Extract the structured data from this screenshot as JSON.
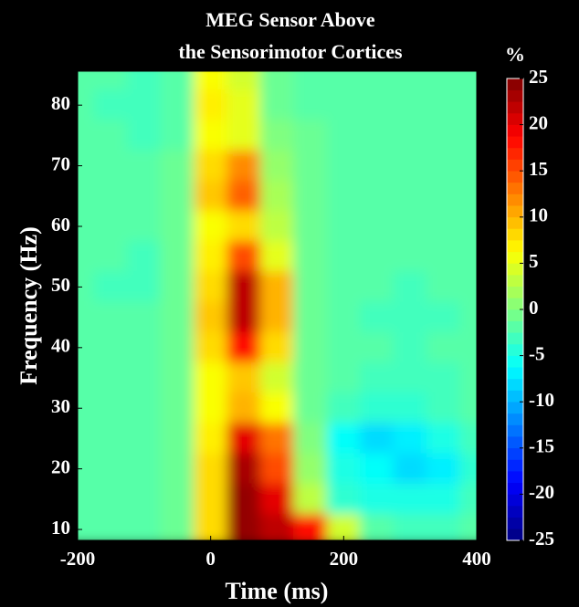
{
  "chart_data": {
    "type": "heatmap",
    "title": [
      "MEG Sensor Above",
      "the Sensorimotor Cortices"
    ],
    "x_label": "Time (ms)",
    "y_label": "Frequency (Hz)",
    "colorbar_label": "%",
    "x": [
      -200,
      -150,
      -100,
      -50,
      0,
      50,
      100,
      150,
      200,
      250,
      300,
      350,
      400
    ],
    "y": [
      85,
      80,
      75,
      70,
      65,
      60,
      55,
      50,
      45,
      40,
      35,
      30,
      25,
      20,
      15,
      10
    ],
    "z": [
      [
        -2,
        -2,
        -3,
        -2,
        6,
        4,
        -1,
        -2,
        -2,
        -2,
        -2,
        -2,
        -2
      ],
      [
        -2,
        -3,
        -3,
        -2,
        7,
        5,
        -1,
        -2,
        -2,
        -2,
        -2,
        -2,
        -2
      ],
      [
        -2,
        -2,
        -3,
        -2,
        6,
        5,
        0,
        -1,
        -2,
        -2,
        -2,
        -2,
        -2
      ],
      [
        -2,
        -2,
        -2,
        -1,
        8,
        12,
        1,
        -1,
        -2,
        -2,
        -2,
        -2,
        -2
      ],
      [
        -2,
        -2,
        -2,
        -1,
        9,
        14,
        2,
        -1,
        -2,
        -2,
        -2,
        -2,
        -2
      ],
      [
        -2,
        -2,
        -2,
        -1,
        6,
        8,
        3,
        -1,
        -2,
        -2,
        -2,
        -2,
        -2
      ],
      [
        -2,
        -2,
        -3,
        -1,
        7,
        15,
        5,
        -1,
        -2,
        -2,
        -2,
        -2,
        -2
      ],
      [
        -2,
        -3,
        -3,
        -1,
        8,
        22,
        10,
        -1,
        -2,
        -2,
        -3,
        -2,
        -2
      ],
      [
        -2,
        -2,
        -2,
        -1,
        9,
        22,
        10,
        -1,
        -2,
        -3,
        -3,
        -3,
        -2
      ],
      [
        -2,
        -2,
        -2,
        -1,
        8,
        18,
        8,
        -1,
        -2,
        -2,
        -3,
        -2,
        -2
      ],
      [
        -2,
        -2,
        -2,
        -1,
        6,
        9,
        4,
        -1,
        -2,
        -3,
        -3,
        -3,
        -2
      ],
      [
        -2,
        -2,
        -2,
        -1,
        6,
        10,
        6,
        -1,
        -3,
        -4,
        -4,
        -3,
        -2
      ],
      [
        -2,
        -2,
        -2,
        -1,
        7,
        20,
        13,
        0,
        -6,
        -8,
        -7,
        -5,
        -3
      ],
      [
        -2,
        -2,
        -2,
        -1,
        8,
        23,
        15,
        1,
        -5,
        -6,
        -8,
        -7,
        -4
      ],
      [
        -2,
        -2,
        -2,
        -1,
        8,
        24,
        20,
        3,
        -4,
        -5,
        -5,
        -5,
        -3
      ],
      [
        -2,
        -2,
        -2,
        -1,
        8,
        24,
        22,
        18,
        4,
        -2,
        -3,
        -3,
        -2
      ]
    ],
    "xlim": [
      -200,
      400
    ],
    "ylim": [
      8.2,
      85.6
    ],
    "xticks": [
      -200,
      0,
      200,
      400
    ],
    "yticks": [
      10,
      20,
      30,
      40,
      50,
      60,
      70,
      80
    ],
    "clim": [
      -25,
      25
    ],
    "cticks": [
      -25,
      -20,
      -15,
      -10,
      -5,
      0,
      5,
      10,
      15,
      20,
      25
    ],
    "colormap": "jet"
  }
}
